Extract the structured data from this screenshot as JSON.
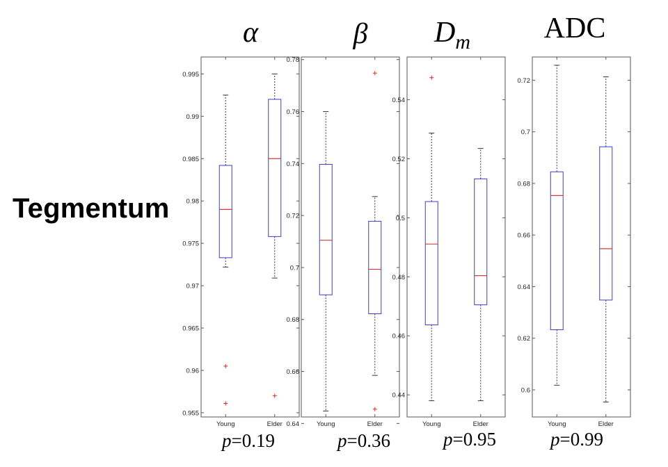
{
  "figure": {
    "row_label": "Tegmentum"
  },
  "chart_data": [
    {
      "type": "box",
      "title": "α",
      "title_style": "italic",
      "categories": [
        "Young",
        "Elder"
      ],
      "ylim": [
        0.9545,
        0.997
      ],
      "yticks": [
        0.955,
        0.96,
        0.965,
        0.97,
        0.975,
        0.98,
        0.985,
        0.99,
        0.995
      ],
      "ytick_labels": [
        "0.955",
        "0.96",
        "0.965",
        "0.97",
        "0.975",
        "0.98",
        "0.985",
        "0.99",
        "0.995"
      ],
      "boxes": [
        {
          "whisker_low": 0.9722,
          "q1": 0.9733,
          "median": 0.979,
          "q3": 0.9842,
          "whisker_high": 0.9925,
          "outliers": [
            0.9605,
            0.9561
          ]
        },
        {
          "whisker_low": 0.9709,
          "q1": 0.9758,
          "median": 0.985,
          "q3": 0.992,
          "whisker_high": 0.995,
          "outliers": [
            0.957
          ]
        }
      ],
      "p_prefix": "p",
      "p_value": "=0.19"
    },
    {
      "type": "box",
      "title": "β",
      "title_style": "italic",
      "categories": [
        "Young",
        "Elder"
      ],
      "ylim": [
        0.6425,
        0.781
      ],
      "yticks": [
        0.64,
        0.66,
        0.68,
        0.7,
        0.72,
        0.74,
        0.76,
        0.78
      ],
      "ytick_labels": [
        "0.64",
        "0.66",
        "0.68",
        "0.7",
        "0.72",
        "0.74",
        "0.76",
        "0.78"
      ],
      "boxes": [
        {
          "whisker_low": 0.6448,
          "q1": 0.6895,
          "median": 0.7105,
          "q3": 0.7397,
          "whisker_high": 0.76,
          "outliers": []
        },
        {
          "whisker_low": 0.6585,
          "q1": 0.6822,
          "median": 0.6993,
          "q3": 0.7178,
          "whisker_high": 0.7273,
          "outliers": [
            0.7748,
            0.6455
          ]
        }
      ],
      "p_prefix": "p",
      "p_value": "=0.36"
    },
    {
      "type": "box",
      "title": "D",
      "title_subscript": "m",
      "title_style": "italic",
      "categories": [
        "Young",
        "Elder"
      ],
      "ylim": [
        0.4325,
        0.5545
      ],
      "yticks": [
        0.44,
        0.46,
        0.48,
        0.5,
        0.52,
        0.54
      ],
      "ytick_labels": [
        "0.44",
        "0.46",
        "0.48",
        "0.5",
        "0.52",
        "0.54"
      ],
      "boxes": [
        {
          "whisker_low": 0.438,
          "q1": 0.4637,
          "median": 0.4911,
          "q3": 0.5055,
          "whisker_high": 0.5287,
          "outliers": [
            0.5475
          ]
        },
        {
          "whisker_low": 0.438,
          "q1": 0.4705,
          "median": 0.4804,
          "q3": 0.5132,
          "whisker_high": 0.5235,
          "outliers": []
        }
      ],
      "p_prefix": "p",
      "p_value": "=0.95"
    },
    {
      "type": "box",
      "title": "ADC",
      "title_style": "upright",
      "categories": [
        "Young",
        "Elder"
      ],
      "ylim": [
        0.5895,
        0.729
      ],
      "yticks": [
        0.6,
        0.62,
        0.64,
        0.66,
        0.68,
        0.7,
        0.72
      ],
      "ytick_labels": [
        "0.6",
        "0.62",
        "0.64",
        "0.66",
        "0.68",
        "0.7",
        "0.72"
      ],
      "boxes": [
        {
          "whisker_low": 0.6018,
          "q1": 0.6233,
          "median": 0.6753,
          "q3": 0.6845,
          "whisker_high": 0.7258,
          "outliers": []
        },
        {
          "whisker_low": 0.5953,
          "q1": 0.6348,
          "median": 0.6547,
          "q3": 0.6942,
          "whisker_high": 0.7213,
          "outliers": []
        }
      ],
      "p_prefix": "p",
      "p_value": "=0.99"
    }
  ],
  "colors": {
    "box_stroke": "#3b3bd6",
    "median": "#d23c3c",
    "whisker": "#333333",
    "outlier": "#c83232",
    "axis": "#555555"
  }
}
